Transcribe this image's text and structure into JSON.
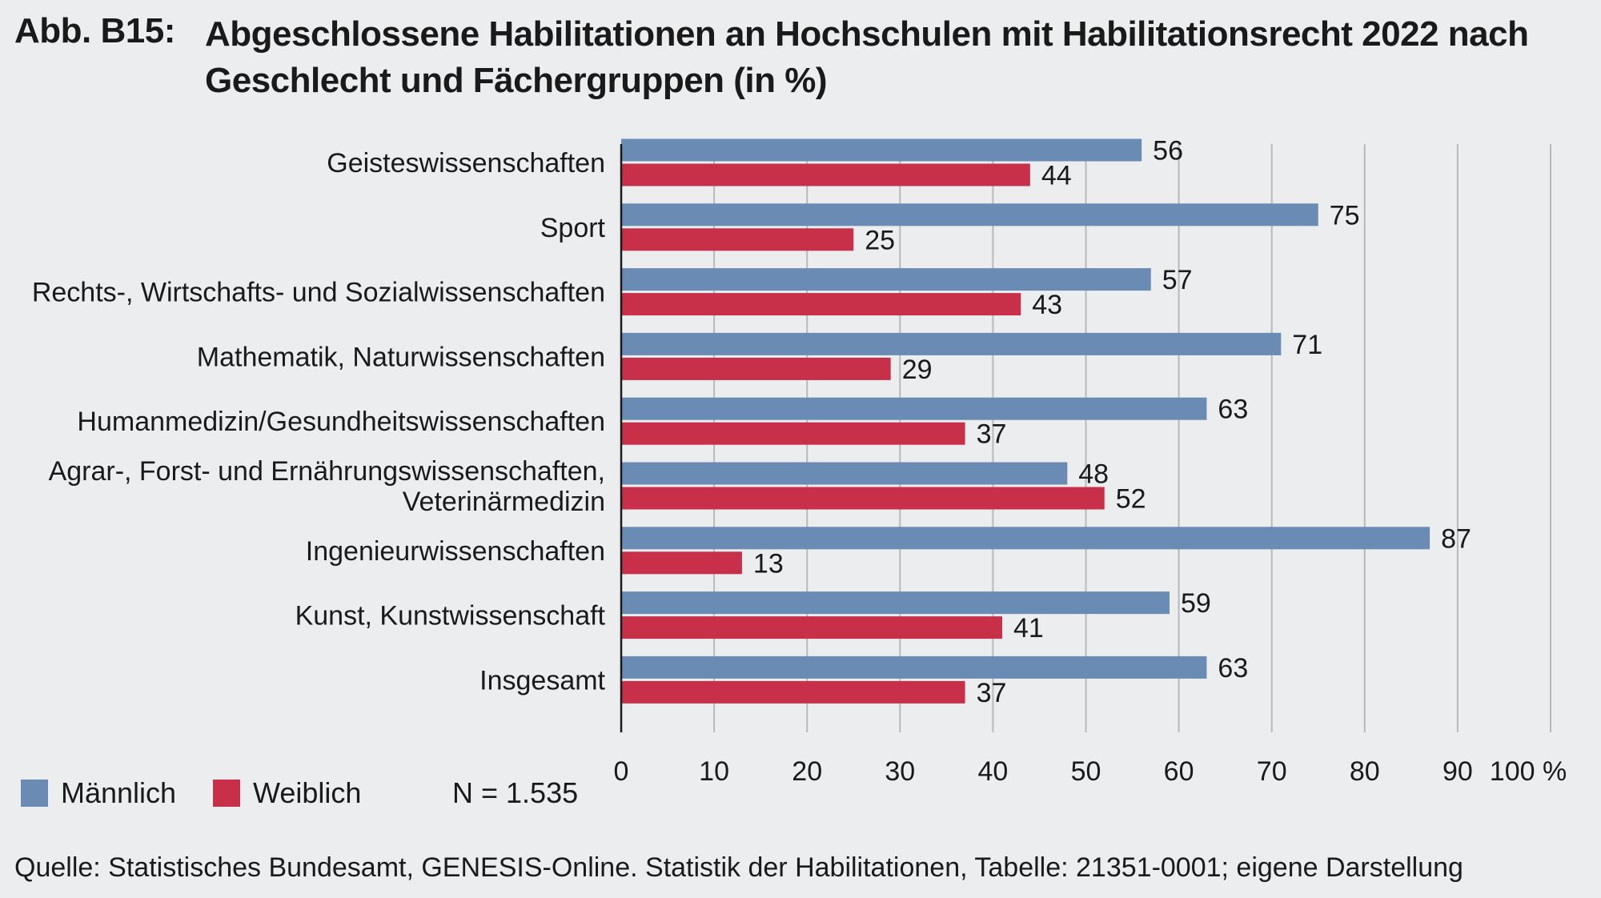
{
  "figure": {
    "label": "Abb. B15:",
    "title": "Abgeschlossene Habilitationen an Hochschulen mit Habilitationsrecht 2022 nach Geschlecht und Fächergruppen (in %)"
  },
  "chart_data": {
    "type": "bar",
    "orientation": "horizontal",
    "categories": [
      [
        "Geisteswissenschaften"
      ],
      [
        "Sport"
      ],
      [
        "Rechts-, Wirtschafts- und Sozialwissenschaften"
      ],
      [
        "Mathematik, Naturwissenschaften"
      ],
      [
        "Humanmedizin/Gesundheitswissenschaften"
      ],
      [
        "Agrar-, Forst- und Ernährungswissenschaften,",
        "Veterinärmedizin"
      ],
      [
        "Ingenieurwissenschaften"
      ],
      [
        "Kunst, Kunstwissenschaft"
      ],
      [
        "Insgesamt"
      ]
    ],
    "series": [
      {
        "name": "Männlich",
        "color": "#6a8bb4",
        "values": [
          56,
          75,
          57,
          71,
          63,
          48,
          87,
          59,
          63
        ]
      },
      {
        "name": "Weiblich",
        "color": "#c8304a",
        "values": [
          44,
          25,
          43,
          29,
          37,
          52,
          13,
          41,
          37
        ]
      }
    ],
    "xlim": [
      0,
      100
    ],
    "xticks": [
      "0",
      "10",
      "20",
      "30",
      "40",
      "50",
      "60",
      "70",
      "80",
      "90",
      "100 %"
    ],
    "grid": true,
    "gridline_color": "#b8b9bb",
    "legend_position": "bottom-left"
  },
  "legend": {
    "male_label": "Männlich",
    "female_label": "Weiblich",
    "male_color": "#6a8bb4",
    "female_color": "#c8304a"
  },
  "note": "N = 1.535",
  "source": "Quelle: Statistisches Bundesamt, GENESIS-Online. Statistik der Habilitationen, Tabelle: 21351-0001; eigene Darstellung"
}
